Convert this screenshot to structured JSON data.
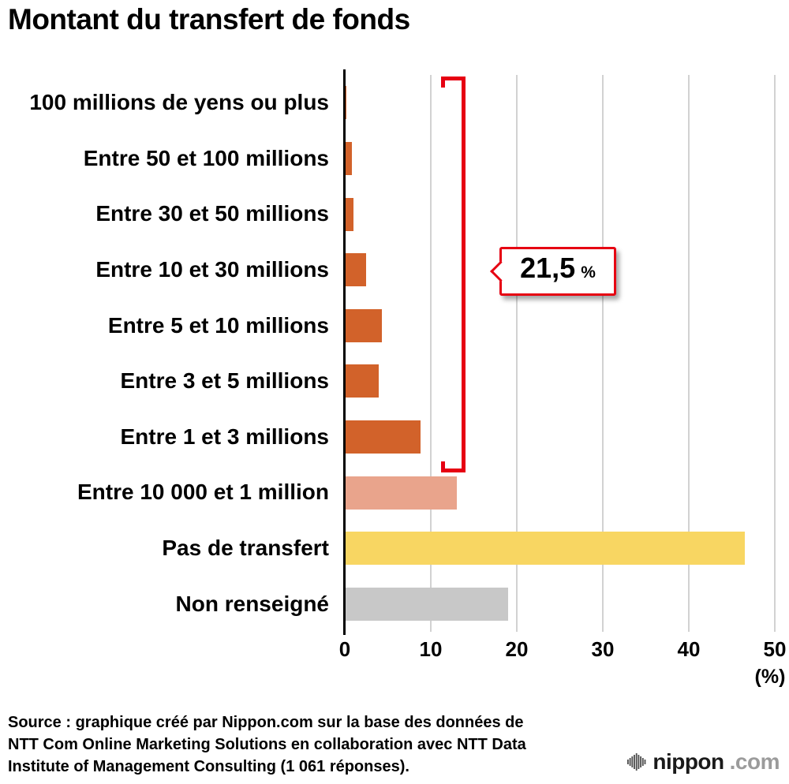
{
  "title": "Montant du transfert de fonds",
  "chart_data": {
    "type": "bar",
    "orientation": "horizontal",
    "title": "Montant du transfert de fonds",
    "categories": [
      "100 millions de yens ou plus",
      "Entre 50 et 100 millions",
      "Entre 30 et 50 millions",
      "Entre 10 et 30 millions",
      "Entre 5 et 10 millions",
      "Entre 3 et 5 millions",
      "Entre 1 et 3 millions",
      "Entre 10 000 et 1 million",
      "Pas de transfert",
      "Non renseigné"
    ],
    "values": [
      0.2,
      0.8,
      1.0,
      2.5,
      4.3,
      3.9,
      8.8,
      13.0,
      46.5,
      19.0
    ],
    "bar_colors": [
      "#d2622a",
      "#d2622a",
      "#d2622a",
      "#d2622a",
      "#d2622a",
      "#d2622a",
      "#d2622a",
      "#e9a48c",
      "#f8d662",
      "#c8c8c8"
    ],
    "xlim": [
      0,
      50
    ],
    "x_ticks": [
      0,
      10,
      20,
      30,
      40,
      50
    ],
    "x_axis_unit": "(%)",
    "grid": true,
    "legend": "none",
    "annotation": {
      "value": "21,5",
      "unit": "%",
      "applies_to": "sum of first seven categories (1 million de yens ou plus)",
      "accent_color": "#e60012"
    }
  },
  "source": {
    "lines": [
      "Source : graphique créé par Nippon.com sur la base des données de",
      "NTT Com Online Marketing Solutions en collaboration avec NTT Data",
      "Institute of Management Consulting (1 061 réponses)."
    ]
  },
  "logo": {
    "name": "nippon",
    "suffix": ".com"
  }
}
